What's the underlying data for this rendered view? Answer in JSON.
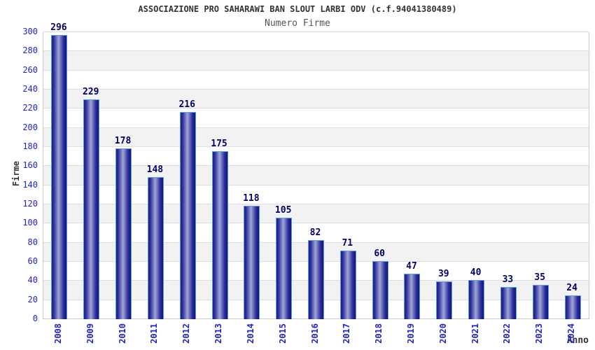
{
  "chart_data": {
    "type": "bar",
    "title": "ASSOCIAZIONE PRO SAHARAWI BAN SLOUT LARBI ODV (c.f.94041380489)",
    "subtitle": "Numero Firme",
    "xlabel": "Anno",
    "ylabel": "Firme",
    "categories": [
      "2008",
      "2009",
      "2010",
      "2011",
      "2012",
      "2013",
      "2014",
      "2015",
      "2016",
      "2017",
      "2018",
      "2019",
      "2020",
      "2021",
      "2022",
      "2023",
      "2024"
    ],
    "values": [
      296,
      229,
      178,
      148,
      216,
      175,
      118,
      105,
      82,
      71,
      60,
      47,
      39,
      40,
      33,
      35,
      24
    ],
    "ylim": [
      0,
      300
    ],
    "ytick_step": 20,
    "yticks": [
      0,
      20,
      40,
      60,
      80,
      100,
      120,
      140,
      160,
      180,
      200,
      220,
      240,
      260,
      280,
      300
    ],
    "grid": true,
    "legend": "none",
    "colors": {
      "tick_label": "#2222cc",
      "value_label": "#000066",
      "title": "#333333",
      "subtitle": "#555555",
      "axis_title": "#333333",
      "band_alt": "#f2f2f2",
      "gridline": "#dddddd",
      "axis_line": "#cccccc",
      "bar_edge_dark": "#1b1b8c",
      "bar_center_light": "#a0a6d6",
      "bar_border": "#55a0e8"
    }
  }
}
